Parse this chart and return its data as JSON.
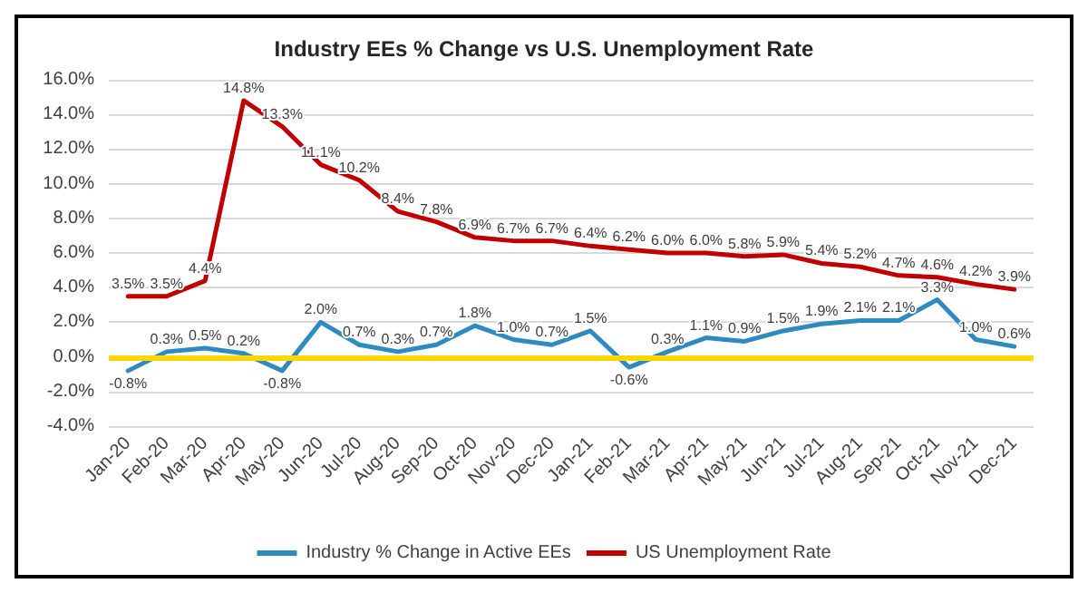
{
  "chart_data": {
    "type": "line",
    "title": "Industry EEs % Change vs U.S. Unemployment Rate",
    "categories": [
      "Jan-20",
      "Feb-20",
      "Mar-20",
      "Apr-20",
      "May-20",
      "Jun-20",
      "Jul-20",
      "Aug-20",
      "Sep-20",
      "Oct-20",
      "Nov-20",
      "Dec-20",
      "Jan-21",
      "Feb-21",
      "Mar-21",
      "Apr-21",
      "May-21",
      "Jun-21",
      "Jul-21",
      "Aug-21",
      "Sep-21",
      "Oct-21",
      "Nov-21",
      "Dec-21"
    ],
    "series": [
      {
        "name": "Industry % Change in Active EEs",
        "color": "#2e8bc0",
        "values": [
          -0.8,
          0.3,
          0.5,
          0.2,
          -0.8,
          2.0,
          0.7,
          0.3,
          0.7,
          1.8,
          1.0,
          0.7,
          1.5,
          -0.6,
          0.3,
          1.1,
          0.9,
          1.5,
          1.9,
          2.1,
          2.1,
          3.3,
          1.0,
          0.6
        ],
        "value_labels": [
          "-0.8%",
          "0.3%",
          "0.5%",
          "0.2%",
          "-0.8%",
          "2.0%",
          "0.7%",
          "0.3%",
          "0.7%",
          "1.8%",
          "1.0%",
          "0.7%",
          "1.5%",
          "-0.6%",
          "0.3%",
          "1.1%",
          "0.9%",
          "1.5%",
          "1.9%",
          "2.1%",
          "2.1%",
          "3.3%",
          "1.0%",
          "0.6%"
        ]
      },
      {
        "name": "US Unemployment Rate",
        "color": "#c00000",
        "values": [
          3.5,
          3.5,
          4.4,
          14.8,
          13.3,
          11.1,
          10.2,
          8.4,
          7.8,
          6.9,
          6.7,
          6.7,
          6.4,
          6.2,
          6.0,
          6.0,
          5.8,
          5.9,
          5.4,
          5.2,
          4.7,
          4.6,
          4.2,
          3.9
        ],
        "value_labels": [
          "3.5%",
          "3.5%",
          "4.4%",
          "14.8%",
          "13.3%",
          "11.1%",
          "10.2%",
          "8.4%",
          "7.8%",
          "6.9%",
          "6.7%",
          "6.7%",
          "6.4%",
          "6.2%",
          "6.0%",
          "6.0%",
          "5.8%",
          "5.9%",
          "5.4%",
          "5.2%",
          "4.7%",
          "4.6%",
          "4.2%",
          "3.9%"
        ]
      }
    ],
    "ylim": [
      -4,
      16
    ],
    "yticks": [
      {
        "value": -4,
        "label": "-4.0%"
      },
      {
        "value": -2,
        "label": "-2.0%"
      },
      {
        "value": 0,
        "label": "0.0%"
      },
      {
        "value": 2,
        "label": "2.0%"
      },
      {
        "value": 4,
        "label": "4.0%"
      },
      {
        "value": 6,
        "label": "6.0%"
      },
      {
        "value": 8,
        "label": "8.0%"
      },
      {
        "value": 10,
        "label": "10.0%"
      },
      {
        "value": 12,
        "label": "12.0%"
      },
      {
        "value": 14,
        "label": "14.0%"
      },
      {
        "value": 16,
        "label": "16.0%"
      }
    ],
    "ref_lines": [
      {
        "axis": "y",
        "value": 0,
        "color": "#ffd700"
      }
    ],
    "grid": "y",
    "legend": "bottom",
    "marker": "none",
    "line_style": "solid"
  }
}
